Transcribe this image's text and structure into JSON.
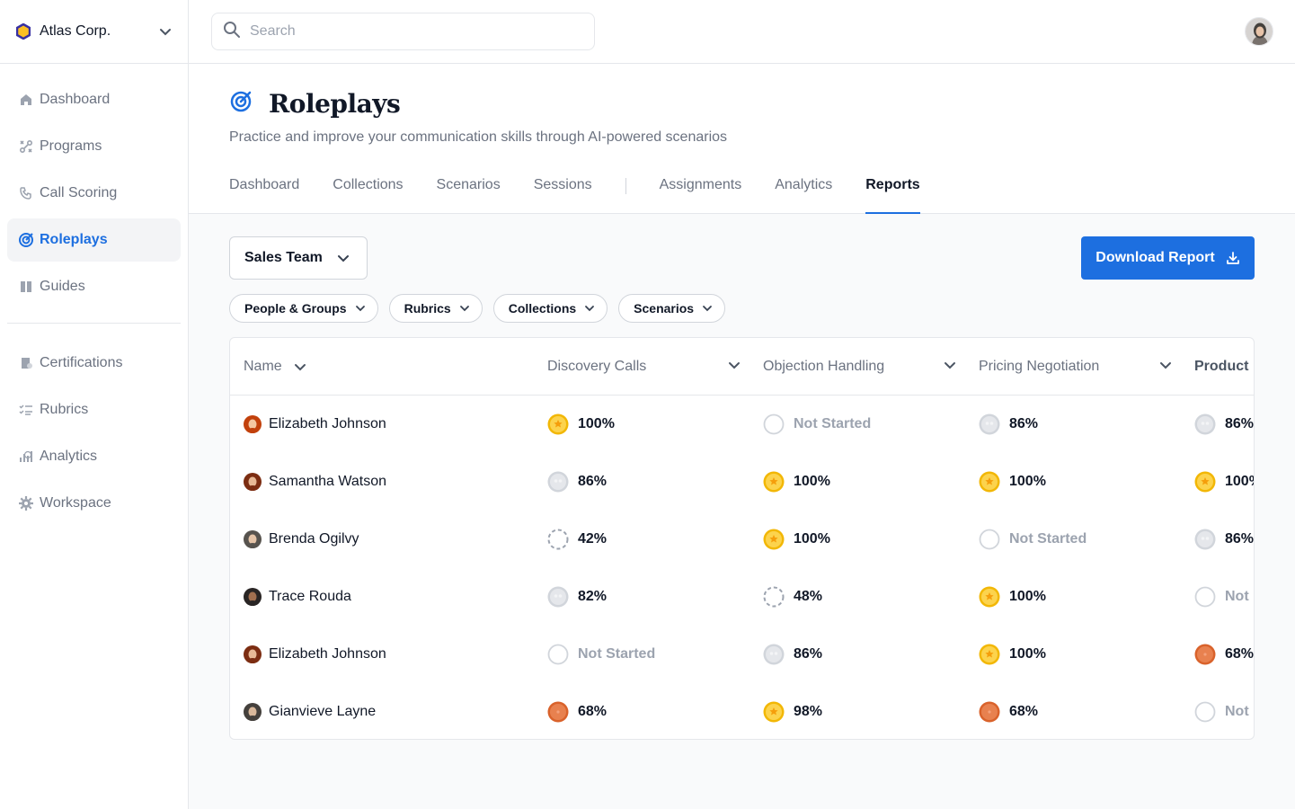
{
  "org": {
    "name": "Atlas Corp."
  },
  "search": {
    "placeholder": "Search"
  },
  "sidebar": {
    "items": [
      {
        "label": "Dashboard",
        "icon": "home-icon"
      },
      {
        "label": "Programs",
        "icon": "programs-icon"
      },
      {
        "label": "Call Scoring",
        "icon": "phone-icon"
      },
      {
        "label": "Roleplays",
        "icon": "target-icon",
        "active": true
      },
      {
        "label": "Guides",
        "icon": "book-icon"
      }
    ],
    "items2": [
      {
        "label": "Certifications",
        "icon": "certificate-icon"
      },
      {
        "label": "Rubrics",
        "icon": "checklist-icon"
      },
      {
        "label": "Analytics",
        "icon": "chart-icon"
      },
      {
        "label": "Workspace",
        "icon": "gear-icon"
      }
    ]
  },
  "page": {
    "title": "Roleplays",
    "subtitle": "Practice and improve your communication skills through AI-powered scenarios",
    "tabs": [
      "Dashboard",
      "Collections",
      "Scenarios",
      "Sessions",
      "Assignments",
      "Analytics",
      "Reports"
    ],
    "active_tab": "Reports"
  },
  "toolbar": {
    "team": "Sales Team",
    "download_label": "Download Report",
    "filters": [
      "People & Groups",
      "Rubrics",
      "Collections",
      "Scenarios"
    ]
  },
  "table": {
    "columns": [
      "Name",
      "Discovery Calls",
      "Objection Handling",
      "Pricing Negotiation",
      "Product"
    ],
    "rows": [
      {
        "name": "Elizabeth Johnson",
        "scores": [
          "100%",
          "Not Started",
          "86%",
          "86%"
        ]
      },
      {
        "name": "Samantha Watson",
        "scores": [
          "86%",
          "100%",
          "100%",
          "100%"
        ]
      },
      {
        "name": "Brenda Ogilvy",
        "scores": [
          "42%",
          "100%",
          "Not Started",
          "86%"
        ]
      },
      {
        "name": "Trace Rouda",
        "scores": [
          "82%",
          "48%",
          "100%",
          "Not"
        ]
      },
      {
        "name": "Elizabeth Johnson",
        "scores": [
          "Not Started",
          "86%",
          "100%",
          "68%"
        ]
      },
      {
        "name": "Gianvieve Layne",
        "scores": [
          "68%",
          "98%",
          "68%",
          "Not"
        ]
      }
    ]
  },
  "colors": {
    "accent": "#1d6fe0",
    "gold": "#f5c518",
    "silver": "#d1d5db",
    "bronze": "#e07a4a"
  }
}
